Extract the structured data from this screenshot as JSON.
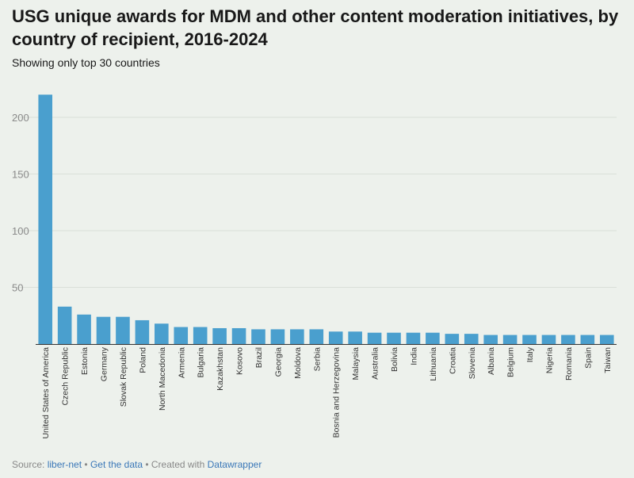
{
  "title": "USG unique awards for MDM and other content moderation initiatives, by country of recipient, 2016-2024",
  "subtitle": "Showing only top 30 countries",
  "footer": {
    "source_label": "Source:",
    "source_link": "liber-net",
    "sep1": "•",
    "get_data": "Get the data",
    "sep2": "•",
    "created": "Created with",
    "tool": "Datawrapper"
  },
  "colors": {
    "bar": "#4a9fce",
    "grid": "#d9dfd8",
    "axis_text": "#8a8a8a",
    "link": "#3b78b8"
  },
  "chart_data": {
    "type": "bar",
    "title": "USG unique awards for MDM and other content moderation initiatives, by country of recipient, 2016-2024",
    "subtitle": "Showing only top 30 countries",
    "categories": [
      "United States of America",
      "Czech Republic",
      "Estonia",
      "Germany",
      "Slovak Republic",
      "Poland",
      "North Macedonia",
      "Armenia",
      "Bulgaria",
      "Kazakhstan",
      "Kosovo",
      "Brazil",
      "Georgia",
      "Moldova",
      "Serbia",
      "Bosnia and Herzegovina",
      "Malaysia",
      "Australia",
      "Bolivia",
      "India",
      "Lithuania",
      "Croatia",
      "Slovenia",
      "Albania",
      "Belgium",
      "Italy",
      "Nigeria",
      "Romania",
      "Spain",
      "Taiwan"
    ],
    "values": [
      220,
      33,
      26,
      24,
      24,
      21,
      18,
      15,
      15,
      14,
      14,
      13,
      13,
      13,
      13,
      11,
      11,
      10,
      10,
      10,
      10,
      9,
      9,
      8,
      8,
      8,
      8,
      8,
      8,
      8
    ],
    "yticks": [
      50,
      100,
      150,
      200
    ],
    "ylim": [
      0,
      225
    ],
    "grid": true,
    "xlabel": "",
    "ylabel": ""
  }
}
